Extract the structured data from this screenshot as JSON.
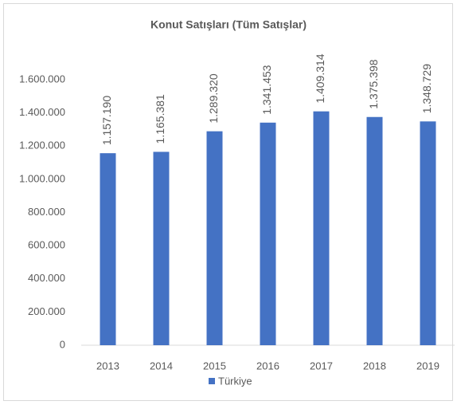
{
  "chart_data": {
    "type": "bar",
    "title": "Konut Satışları (Tüm Satışlar)",
    "categories": [
      "2013",
      "2014",
      "2015",
      "2016",
      "2017",
      "2018",
      "2019"
    ],
    "series": [
      {
        "name": "Türkiye",
        "color": "#4472c4",
        "values": [
          1157190,
          1165381,
          1289320,
          1341453,
          1409314,
          1375398,
          1348729
        ],
        "value_labels": [
          "1.157.190",
          "1.165.381",
          "1.289.320",
          "1.341.453",
          "1.409.314",
          "1.375.398",
          "1.348.729"
        ]
      }
    ],
    "ylim": [
      0,
      1600000
    ],
    "yticks": [
      0,
      {
        "value": 200000,
        "label": "200.000"
      },
      {
        "value": 400000,
        "label": "400.000"
      },
      {
        "value": 600000,
        "label": "600.000"
      },
      {
        "value": 800000,
        "label": "800.000"
      },
      {
        "value": 1000000,
        "label": "1.000.000"
      },
      {
        "value": 1200000,
        "label": "1.200.000"
      },
      {
        "value": 1400000,
        "label": "1.400.000"
      },
      {
        "value": 1600000,
        "label": "1.600.000"
      }
    ],
    "grid": false,
    "legend": "bottom"
  }
}
